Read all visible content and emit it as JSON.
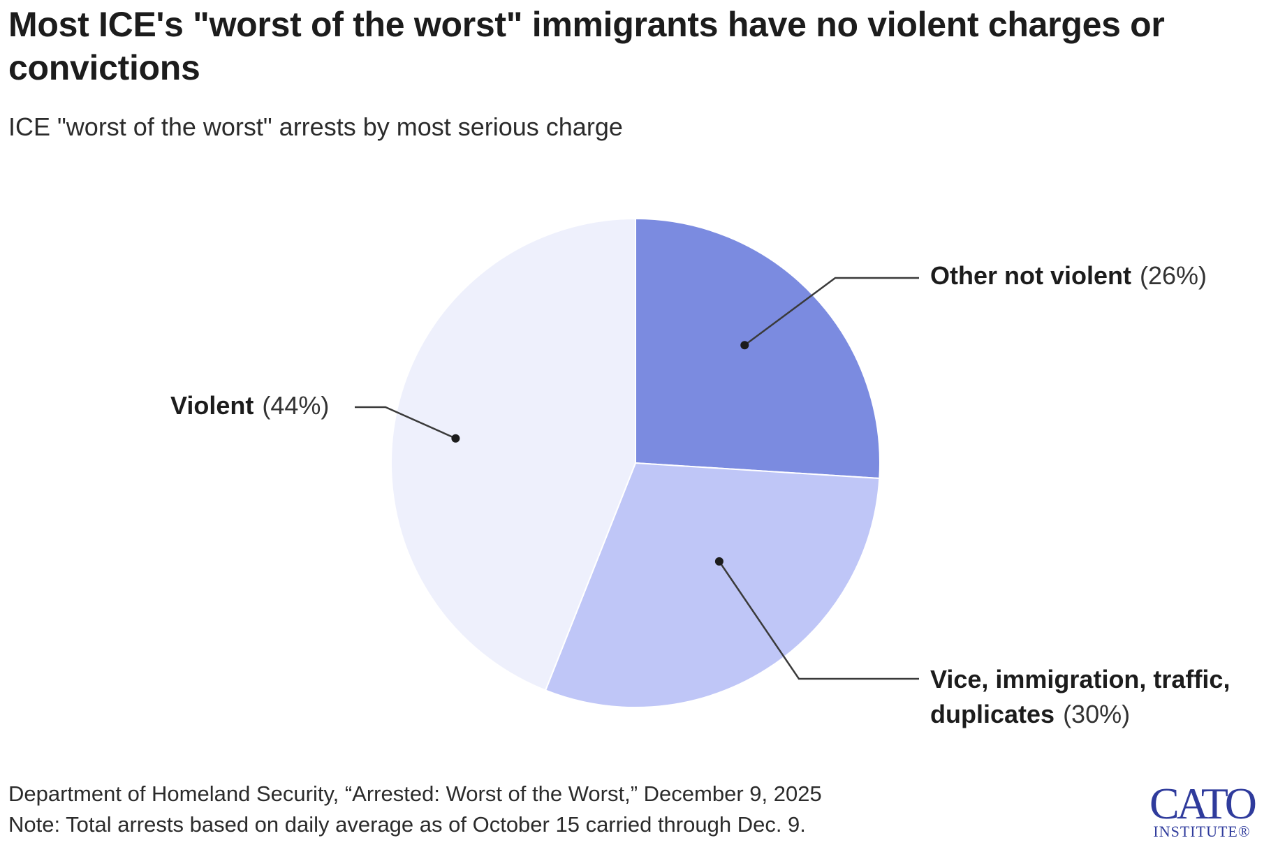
{
  "chart_data": {
    "type": "pie",
    "title": "Most ICE's \"worst of the worst\" immigrants have no violent charges or convictions",
    "subtitle": "ICE \"worst of the worst\" arrests by most serious charge",
    "slices": [
      {
        "name": "Other not violent",
        "value": 26,
        "value_label": "(26%)",
        "color": "#7b8be0"
      },
      {
        "name": "Vice, immigration, traffic, duplicates",
        "value": 30,
        "value_label": "(30%)",
        "color": "#bfc6f7"
      },
      {
        "name": "Violent",
        "value": 44,
        "value_label": "(44%)",
        "color": "#eef0fc"
      }
    ],
    "start_angle_deg": 0,
    "direction": "clockwise",
    "legend": "none",
    "labels": "direct-with-leader-lines"
  },
  "footer": {
    "source": "Department of Homeland Security, “Arrested: Worst of the Worst,” December 9, 2025",
    "note": "Note: Total arrests based on daily average as of October 15 carried through Dec. 9."
  },
  "logo": {
    "main": "CATO",
    "sub": "INSTITUTE®"
  },
  "colors": {
    "title": "#1c1c1c",
    "logo": "#2f3b9c",
    "slice_border": "#ffffff"
  }
}
